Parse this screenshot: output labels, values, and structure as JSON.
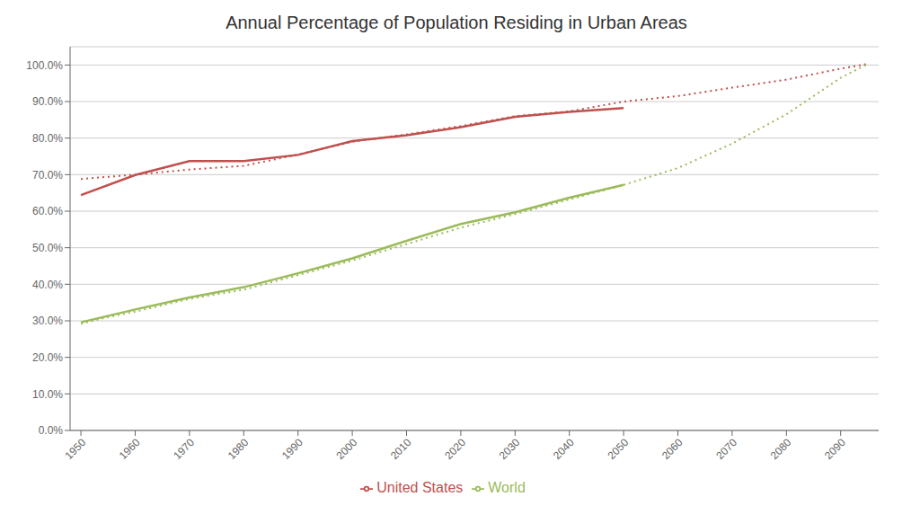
{
  "chart_data": {
    "type": "line",
    "title": "Annual Percentage of Population Residing in Urban Areas",
    "xlim": [
      1948,
      2097
    ],
    "ylim": [
      0.0,
      1.05
    ],
    "xticks": [
      1950,
      1960,
      1970,
      1980,
      1990,
      2000,
      2010,
      2020,
      2030,
      2040,
      2050,
      2060,
      2070,
      2080,
      2090
    ],
    "yticks": [
      {
        "value": 0.0,
        "label": "0.0%"
      },
      {
        "value": 0.1,
        "label": "10.0%"
      },
      {
        "value": 0.2,
        "label": "20.0%"
      },
      {
        "value": 0.3,
        "label": "30.0%"
      },
      {
        "value": 0.4,
        "label": "40.0%"
      },
      {
        "value": 0.5,
        "label": "50.0%"
      },
      {
        "value": 0.6,
        "label": "60.0%"
      },
      {
        "value": 0.7,
        "label": "70.0%"
      },
      {
        "value": 0.8,
        "label": "80.0%"
      },
      {
        "value": 0.9,
        "label": "90.0%"
      },
      {
        "value": 1.0,
        "label": "100.0%"
      }
    ],
    "grid": true,
    "legend": "bottom",
    "series": [
      {
        "color": "#C0504D",
        "line_style": "dotted",
        "x": [
          1950,
          1955,
          1960,
          1970,
          1980,
          1990,
          2000,
          2010,
          2020,
          2030,
          2040,
          2050,
          2060,
          2070,
          2080,
          2090,
          2095
        ],
        "values": [
          0.688,
          0.694,
          0.7,
          0.714,
          0.724,
          0.755,
          0.79,
          0.81,
          0.833,
          0.86,
          0.873,
          0.9,
          0.915,
          0.938,
          0.96,
          0.99,
          1.003
        ]
      },
      {
        "color": "#9BBB59",
        "line_style": "dotted",
        "x": [
          1950,
          1955,
          1960,
          1970,
          1980,
          1990,
          2000,
          2010,
          2020,
          2030,
          2040,
          2050,
          2060,
          2070,
          2080,
          2090,
          2095
        ],
        "values": [
          0.292,
          0.31,
          0.325,
          0.36,
          0.385,
          0.425,
          0.465,
          0.51,
          0.555,
          0.592,
          0.632,
          0.672,
          0.718,
          0.785,
          0.865,
          0.965,
          1.003
        ]
      },
      {
        "name": "United States",
        "color": "#C0504D",
        "line_style": "solid",
        "x": [
          1950,
          1960,
          1970,
          1980,
          1990,
          2000,
          2010,
          2020,
          2030,
          2040,
          2050
        ],
        "values": [
          0.644,
          0.699,
          0.737,
          0.737,
          0.754,
          0.792,
          0.808,
          0.83,
          0.858,
          0.872,
          0.882
        ]
      },
      {
        "name": "World",
        "color": "#9BBB59",
        "line_style": "solid",
        "x": [
          1950,
          1960,
          1970,
          1980,
          1990,
          2000,
          2010,
          2020,
          2030,
          2040,
          2050
        ],
        "values": [
          0.296,
          0.331,
          0.364,
          0.392,
          0.43,
          0.471,
          0.519,
          0.565,
          0.597,
          0.637,
          0.672
        ]
      }
    ]
  }
}
